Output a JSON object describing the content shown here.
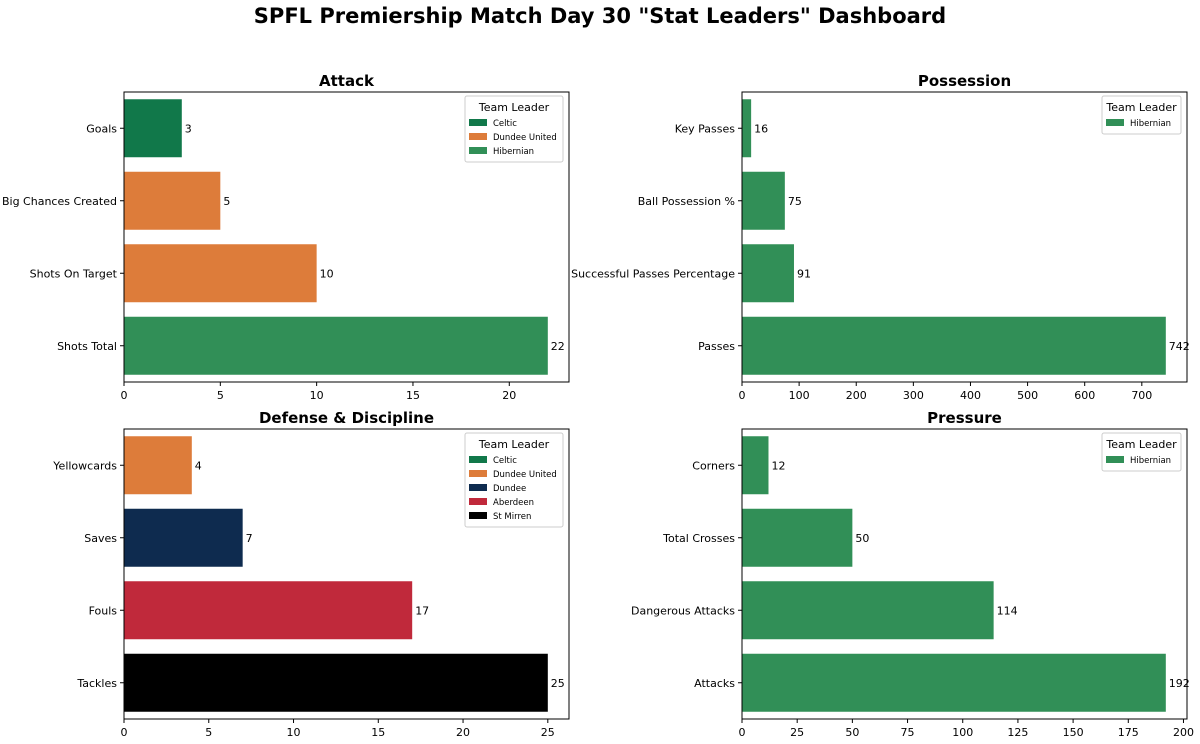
{
  "title": "SPFL Premiership Match Day 30 \"Stat Leaders\" Dashboard",
  "legend_title": "Team Leader",
  "team_colors": {
    "Celtic": "#11784a",
    "Dundee United": "#dd7c3a",
    "Hibernian": "#318f57",
    "Dundee": "#0e2b4f",
    "Aberdeen": "#c0293b",
    "St Mirren": "#000000"
  },
  "chart_data": [
    {
      "type": "bar",
      "orientation": "horizontal",
      "title": "Attack",
      "xlabel": "",
      "ylabel": "",
      "categories": [
        "Goals",
        "Big Chances Created",
        "Shots On Target",
        "Shots Total"
      ],
      "values": [
        3,
        5,
        10,
        22
      ],
      "teams": [
        "Celtic",
        "Dundee United",
        "Dundee United",
        "Hibernian"
      ],
      "legend": [
        "Celtic",
        "Dundee United",
        "Hibernian"
      ],
      "legend_position": "top-right",
      "xlim": [
        0,
        23.1
      ],
      "xticks": [
        0,
        5,
        10,
        15,
        20
      ],
      "grid": false
    },
    {
      "type": "bar",
      "orientation": "horizontal",
      "title": "Possession",
      "xlabel": "",
      "ylabel": "",
      "categories": [
        "Key Passes",
        "Ball Possession %",
        "Successful Passes Percentage",
        "Passes"
      ],
      "values": [
        16,
        75,
        91,
        742
      ],
      "teams": [
        "Hibernian",
        "Hibernian",
        "Hibernian",
        "Hibernian"
      ],
      "legend": [
        "Hibernian"
      ],
      "legend_position": "top-right",
      "xlim": [
        0,
        779.1
      ],
      "xticks": [
        0,
        100,
        200,
        300,
        400,
        500,
        600,
        700
      ],
      "grid": false
    },
    {
      "type": "bar",
      "orientation": "horizontal",
      "title": "Defense & Discipline",
      "xlabel": "",
      "ylabel": "",
      "categories": [
        "Yellowcards",
        "Saves",
        "Fouls",
        "Tackles"
      ],
      "values": [
        4,
        7,
        17,
        25
      ],
      "teams": [
        "Dundee United",
        "Dundee",
        "Aberdeen",
        "St Mirren"
      ],
      "legend": [
        "Celtic",
        "Dundee United",
        "Dundee",
        "Aberdeen",
        "St Mirren"
      ],
      "legend_position": "top-right",
      "xlim": [
        0,
        26.25
      ],
      "xticks": [
        0,
        5,
        10,
        15,
        20,
        25
      ],
      "grid": false
    },
    {
      "type": "bar",
      "orientation": "horizontal",
      "title": "Pressure",
      "xlabel": "",
      "ylabel": "",
      "categories": [
        "Corners",
        "Total Crosses",
        "Dangerous Attacks",
        "Attacks"
      ],
      "values": [
        12,
        50,
        114,
        192
      ],
      "teams": [
        "Hibernian",
        "Hibernian",
        "Hibernian",
        "Hibernian"
      ],
      "legend": [
        "Hibernian"
      ],
      "legend_position": "top-right",
      "xlim": [
        0,
        201.6
      ],
      "xticks": [
        0,
        25,
        50,
        75,
        100,
        125,
        150,
        175,
        200
      ],
      "grid": false
    }
  ]
}
